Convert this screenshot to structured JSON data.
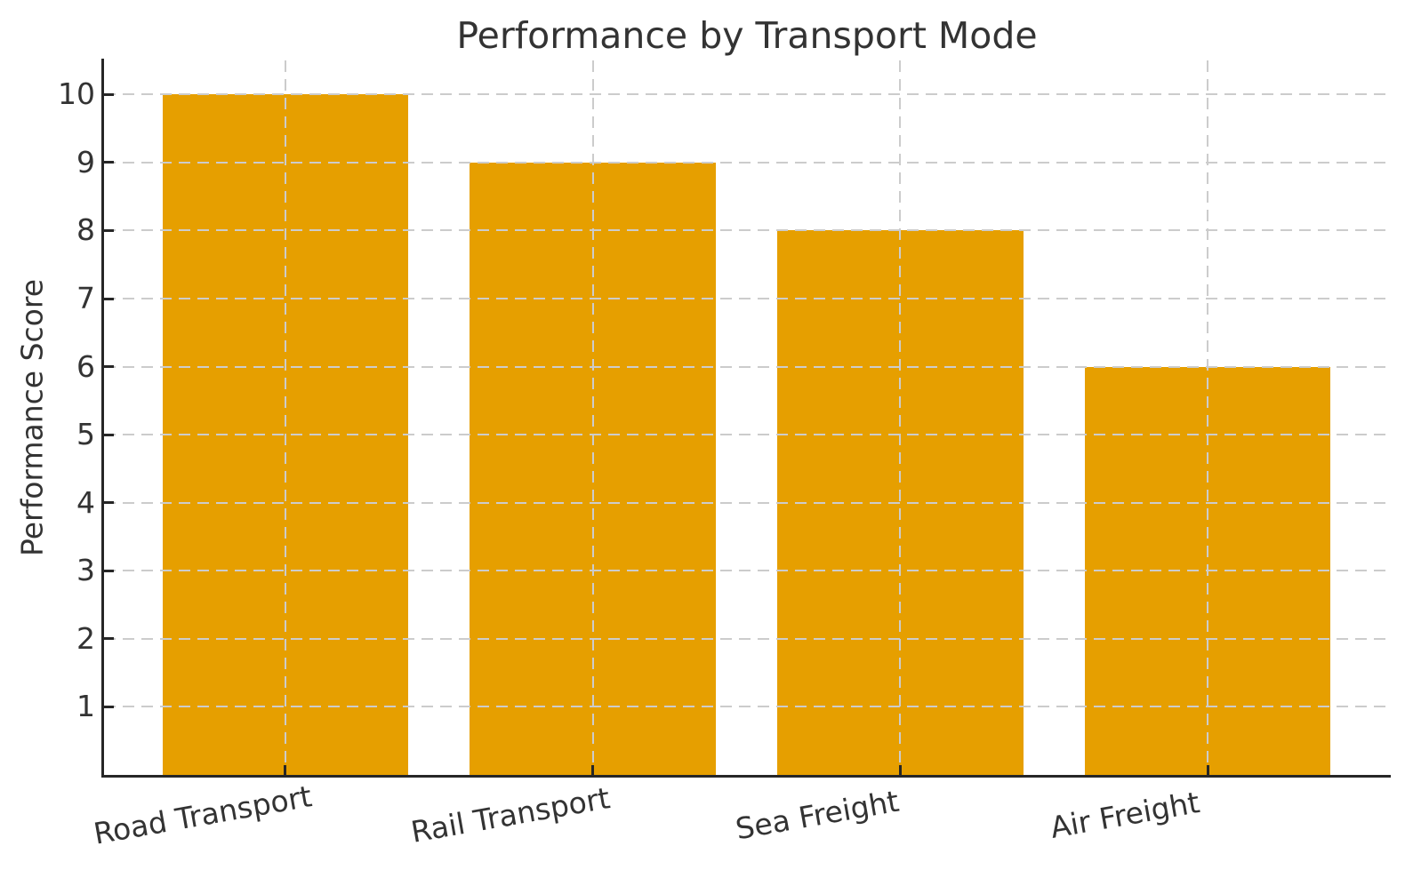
{
  "chart_data": {
    "type": "bar",
    "title": "Performance by Transport Mode",
    "categories": [
      "Road Transport",
      "Rail Transport",
      "Sea Freight",
      "Air Freight"
    ],
    "values": [
      10,
      9,
      8,
      6
    ],
    "xlabel": "",
    "ylabel": "Performance Score",
    "ylim": [
      0,
      10.5
    ],
    "yticks": [
      1,
      2,
      3,
      4,
      5,
      6,
      7,
      8,
      9,
      10
    ],
    "bar_color": "#E69F00",
    "grid": true,
    "grid_color": "#cccccc",
    "grid_style": "dashed",
    "legend_position": "none",
    "text_color": "#333333",
    "spine_color": "#262626",
    "background_color": "#ffffff",
    "x_tick_rotation_deg": -10
  }
}
